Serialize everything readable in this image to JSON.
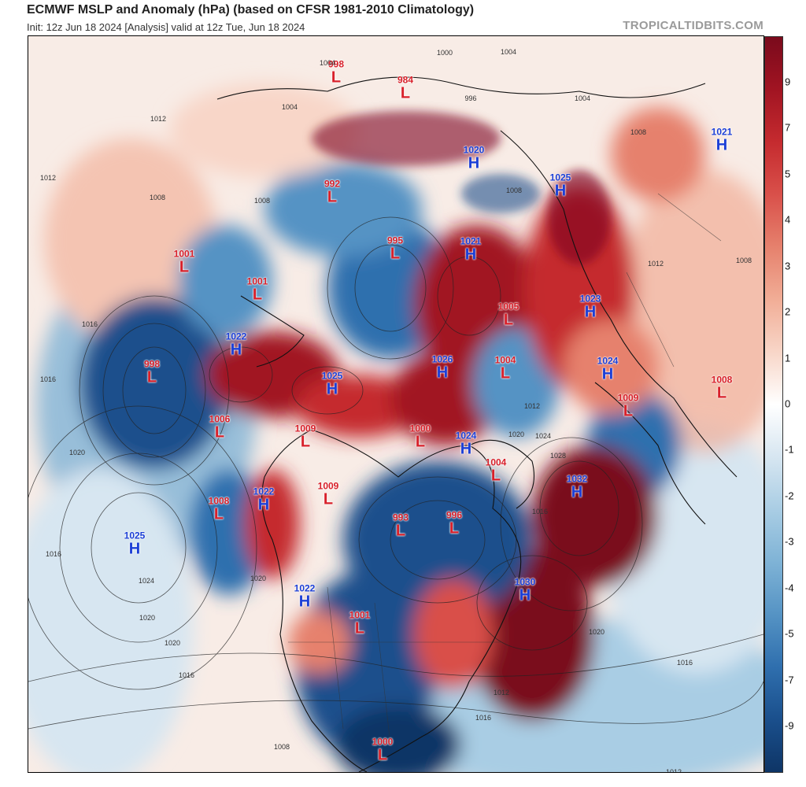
{
  "header": {
    "title": "ECMWF MSLP and Anomaly (hPa) (based on CFSR 1981-2010 Climatology)",
    "subtitle": "Init: 12z Jun 18 2024   [Analysis]   valid at 12z Tue, Jun 18 2024",
    "credit": "TROPICALTIDBITS.COM"
  },
  "colorbar": {
    "labels": [
      "9",
      "7",
      "5",
      "4",
      "3",
      "2",
      "1",
      "0",
      "-1",
      "-2",
      "-3",
      "-4",
      "-5",
      "-7",
      "-9"
    ],
    "colors": [
      "#7a0a1c",
      "#a11422",
      "#c52b2f",
      "#d9504a",
      "#e6816d",
      "#f1ad96",
      "#f8d6c8",
      "#ffffff",
      "#d7e6f1",
      "#a9cde4",
      "#7fb3d6",
      "#5593c4",
      "#2f6fae",
      "#1a4f8c",
      "#0e3566"
    ]
  },
  "pressure_centers": [
    {
      "type": "low",
      "value": "998",
      "letter": "L"
    },
    {
      "type": "low",
      "value": "984",
      "letter": "L"
    },
    {
      "type": "high",
      "value": "1020",
      "letter": "H"
    },
    {
      "type": "high",
      "value": "1025",
      "letter": "H"
    },
    {
      "type": "high",
      "value": "1021",
      "letter": "H"
    },
    {
      "type": "low",
      "value": "992",
      "letter": "L"
    },
    {
      "type": "low",
      "value": "995",
      "letter": "L"
    },
    {
      "type": "high",
      "value": "1021",
      "letter": "H"
    },
    {
      "type": "low",
      "value": "1001",
      "letter": "L"
    },
    {
      "type": "low",
      "value": "1001",
      "letter": "L"
    },
    {
      "type": "low",
      "value": "1005",
      "letter": "L"
    },
    {
      "type": "high",
      "value": "1023",
      "letter": "H"
    },
    {
      "type": "high",
      "value": "1022",
      "letter": "H"
    },
    {
      "type": "low",
      "value": "998",
      "letter": "L"
    },
    {
      "type": "high",
      "value": "1025",
      "letter": "H"
    },
    {
      "type": "high",
      "value": "1026",
      "letter": "H"
    },
    {
      "type": "low",
      "value": "1004",
      "letter": "L"
    },
    {
      "type": "high",
      "value": "1024",
      "letter": "H"
    },
    {
      "type": "low",
      "value": "1009",
      "letter": "L"
    },
    {
      "type": "low",
      "value": "1008",
      "letter": "L"
    },
    {
      "type": "low",
      "value": "1006",
      "letter": "L"
    },
    {
      "type": "low",
      "value": "1009",
      "letter": "L"
    },
    {
      "type": "low",
      "value": "1000",
      "letter": "L"
    },
    {
      "type": "high",
      "value": "1024",
      "letter": "H"
    },
    {
      "type": "low",
      "value": "1004",
      "letter": "L"
    },
    {
      "type": "high",
      "value": "1032",
      "letter": "H"
    },
    {
      "type": "low",
      "value": "1008",
      "letter": "L"
    },
    {
      "type": "high",
      "value": "1022",
      "letter": "H"
    },
    {
      "type": "low",
      "value": "1009",
      "letter": "L"
    },
    {
      "type": "low",
      "value": "993",
      "letter": "L"
    },
    {
      "type": "low",
      "value": "996",
      "letter": "L"
    },
    {
      "type": "high",
      "value": "1025",
      "letter": "H"
    },
    {
      "type": "high",
      "value": "1030",
      "letter": "H"
    },
    {
      "type": "high",
      "value": "1022",
      "letter": "H"
    },
    {
      "type": "low",
      "value": "1001",
      "letter": "L"
    },
    {
      "type": "low",
      "value": "1000",
      "letter": "L"
    }
  ],
  "isobar_labels": [
    "1012",
    "1012",
    "1008",
    "1016",
    "1016",
    "1020",
    "1020",
    "1024",
    "1016",
    "1020",
    "1016",
    "1020",
    "1016",
    "1020",
    "1008",
    "1004",
    "1000",
    "996",
    "1004",
    "1008",
    "1012",
    "1016",
    "1020",
    "1024",
    "1028",
    "1012",
    "1016",
    "1012",
    "1008",
    "1004",
    "1004",
    "1008",
    "1012",
    "1008"
  ]
}
